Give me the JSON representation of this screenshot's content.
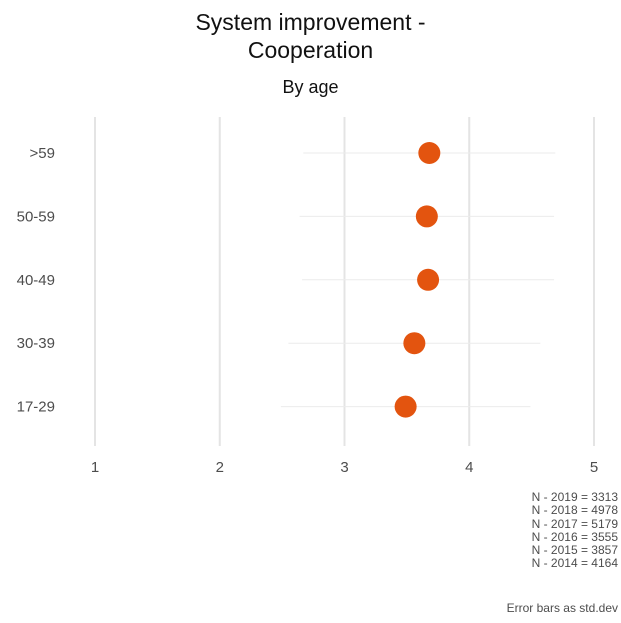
{
  "title_lines": [
    "System improvement -",
    "Cooperation"
  ],
  "subtitle": "By age",
  "colors": {
    "point": "#E3540F",
    "grid": "#E4E4E4",
    "errorbar": "#EBEBEB"
  },
  "notes": [
    "N - 2019 = 3313",
    "N - 2018 = 4978",
    "N - 2017 = 5179",
    "N - 2016 = 3555",
    "N - 2015 = 3857",
    "N - 2014 = 4164"
  ],
  "caption": "Error bars as std.dev",
  "chart_data": {
    "type": "scatter",
    "title": "System improvement - Cooperation",
    "subtitle": "By age",
    "xlim": [
      1,
      5
    ],
    "x_ticks": [
      "1",
      "2",
      "3",
      "4",
      "5"
    ],
    "categories": [
      ">59",
      "50-59",
      "40-49",
      "30-39",
      "17-29"
    ],
    "values": [
      3.68,
      3.66,
      3.67,
      3.56,
      3.49
    ],
    "error_low": [
      2.67,
      2.64,
      2.66,
      2.55,
      2.49
    ],
    "error_high": [
      4.69,
      4.68,
      4.68,
      4.57,
      4.49
    ],
    "grid": true
  }
}
